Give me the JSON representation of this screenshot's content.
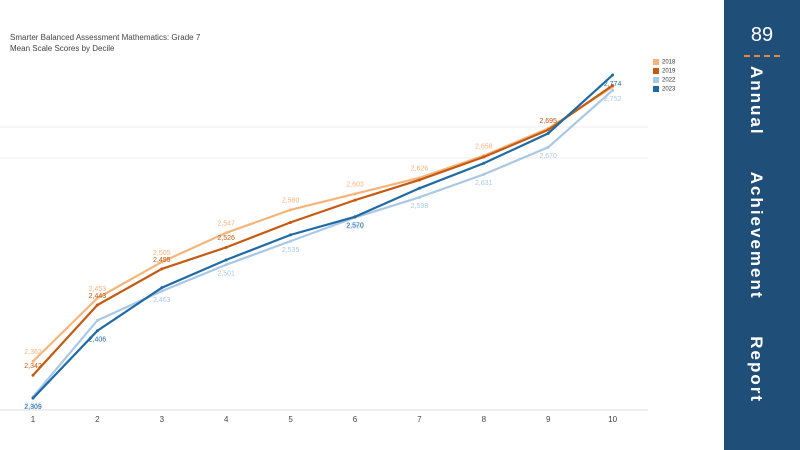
{
  "chart_data": {
    "type": "line",
    "title": "Smarter Balanced Assessment Mathematics: Grade 7",
    "subtitle": "Mean Scale Scores by Decile",
    "categories": [
      "1",
      "2",
      "3",
      "4",
      "5",
      "6",
      "7",
      "8",
      "9",
      "10"
    ],
    "ylim": [
      2292,
      2810
    ],
    "legend": "top-right",
    "series": [
      {
        "name": "2018",
        "color": "#f5b57a",
        "values": [
          2362,
          2453,
          2505,
          2547,
          2580,
          2603,
          2626,
          2658,
          2697,
          2757
        ],
        "value_labels": [
          "2,362",
          "2,453",
          "2,505",
          "2,547",
          "2,580",
          "2,603",
          "2,626",
          "2,658",
          null,
          null
        ]
      },
      {
        "name": "2019",
        "color": "#c55a11",
        "values": [
          2342,
          2443,
          2495,
          2526,
          2562,
          2594,
          2623,
          2656,
          2695,
          2759
        ],
        "value_labels": [
          "2,342",
          "2,443",
          "2,495",
          "2,526",
          null,
          null,
          null,
          null,
          "2,695",
          null
        ]
      },
      {
        "name": "2022",
        "color": "#a9c8e6",
        "values": [
          2311,
          2421,
          2463,
          2501,
          2535,
          2569,
          2598,
          2631,
          2670,
          2752
        ],
        "value_labels": [
          "2,311",
          null,
          "2,463",
          "2,501",
          "2,535",
          "2,569",
          "2,598",
          "2,631",
          "2,670",
          "2,752"
        ]
      },
      {
        "name": "2023",
        "color": "#1f6aa5",
        "values": [
          2309,
          2406,
          2468,
          2508,
          2544,
          2570,
          2611,
          2647,
          2690,
          2774
        ],
        "value_labels": [
          "2,309",
          "2,406",
          null,
          null,
          null,
          "2,570",
          null,
          null,
          null,
          "2,774"
        ]
      }
    ]
  },
  "sidebar": {
    "page_number": "89",
    "title": "Annual Achievement Report"
  }
}
